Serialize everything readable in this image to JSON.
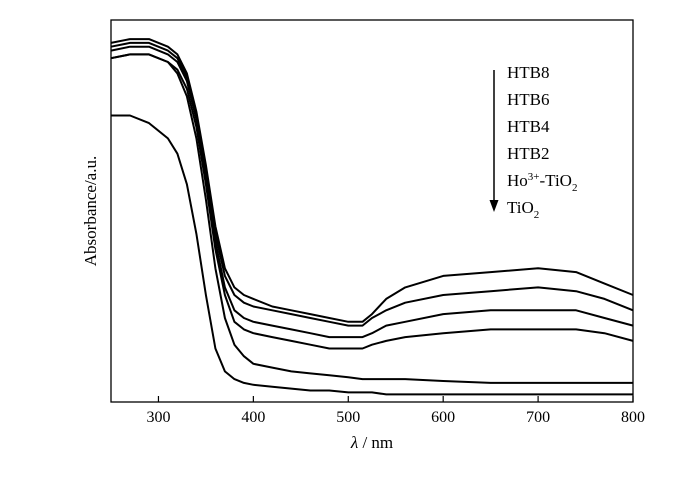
{
  "chart_data": {
    "type": "line",
    "title": "",
    "xlabel_symbol": "λ",
    "xlabel_unit": " / nm",
    "ylabel": "Absorbance/a.u.",
    "xlim": [
      250,
      800
    ],
    "ylim": [
      0,
      1.0
    ],
    "x_ticks": [
      300,
      400,
      500,
      600,
      700,
      800
    ],
    "y_ticks_shown": false,
    "grid": false,
    "legend_position": "top-right",
    "legend_arrow": "down",
    "legend_entries": [
      {
        "base": "HTB8"
      },
      {
        "base": "HTB6"
      },
      {
        "base": "HTB4"
      },
      {
        "base": "HTB2"
      },
      {
        "base": "Ho",
        "sup": "3+",
        "rest": "-TiO",
        "sub": "2"
      },
      {
        "base": "TiO",
        "sub": "2"
      }
    ],
    "x": [
      250,
      270,
      290,
      310,
      320,
      330,
      340,
      350,
      360,
      370,
      380,
      390,
      400,
      420,
      440,
      460,
      480,
      500,
      515,
      525,
      540,
      560,
      600,
      650,
      700,
      740,
      770,
      800
    ],
    "series": [
      {
        "values": [
          0.94,
          0.95,
          0.95,
          0.93,
          0.91,
          0.86,
          0.76,
          0.62,
          0.46,
          0.35,
          0.3,
          0.28,
          0.27,
          0.25,
          0.24,
          0.23,
          0.22,
          0.21,
          0.21,
          0.23,
          0.27,
          0.3,
          0.33,
          0.34,
          0.35,
          0.34,
          0.31,
          0.28
        ]
      },
      {
        "values": [
          0.93,
          0.94,
          0.94,
          0.92,
          0.9,
          0.85,
          0.75,
          0.61,
          0.44,
          0.33,
          0.28,
          0.26,
          0.25,
          0.24,
          0.23,
          0.22,
          0.21,
          0.2,
          0.2,
          0.22,
          0.24,
          0.26,
          0.28,
          0.29,
          0.3,
          0.29,
          0.27,
          0.24
        ]
      },
      {
        "values": [
          0.92,
          0.93,
          0.93,
          0.91,
          0.89,
          0.84,
          0.74,
          0.59,
          0.42,
          0.3,
          0.24,
          0.22,
          0.21,
          0.2,
          0.19,
          0.18,
          0.17,
          0.17,
          0.17,
          0.18,
          0.2,
          0.21,
          0.23,
          0.24,
          0.24,
          0.24,
          0.22,
          0.2
        ]
      },
      {
        "values": [
          0.9,
          0.91,
          0.91,
          0.89,
          0.87,
          0.82,
          0.72,
          0.57,
          0.4,
          0.28,
          0.21,
          0.19,
          0.18,
          0.17,
          0.16,
          0.15,
          0.14,
          0.14,
          0.14,
          0.15,
          0.16,
          0.17,
          0.18,
          0.19,
          0.19,
          0.19,
          0.18,
          0.16
        ]
      },
      {
        "values": [
          0.9,
          0.91,
          0.91,
          0.89,
          0.86,
          0.8,
          0.69,
          0.53,
          0.35,
          0.22,
          0.15,
          0.12,
          0.1,
          0.09,
          0.08,
          0.075,
          0.07,
          0.065,
          0.06,
          0.06,
          0.06,
          0.06,
          0.055,
          0.05,
          0.05,
          0.05,
          0.05,
          0.05
        ]
      },
      {
        "values": [
          0.75,
          0.75,
          0.73,
          0.69,
          0.65,
          0.57,
          0.44,
          0.28,
          0.14,
          0.08,
          0.06,
          0.05,
          0.045,
          0.04,
          0.035,
          0.03,
          0.03,
          0.025,
          0.025,
          0.025,
          0.02,
          0.02,
          0.02,
          0.02,
          0.02,
          0.02,
          0.02,
          0.02
        ]
      }
    ]
  }
}
